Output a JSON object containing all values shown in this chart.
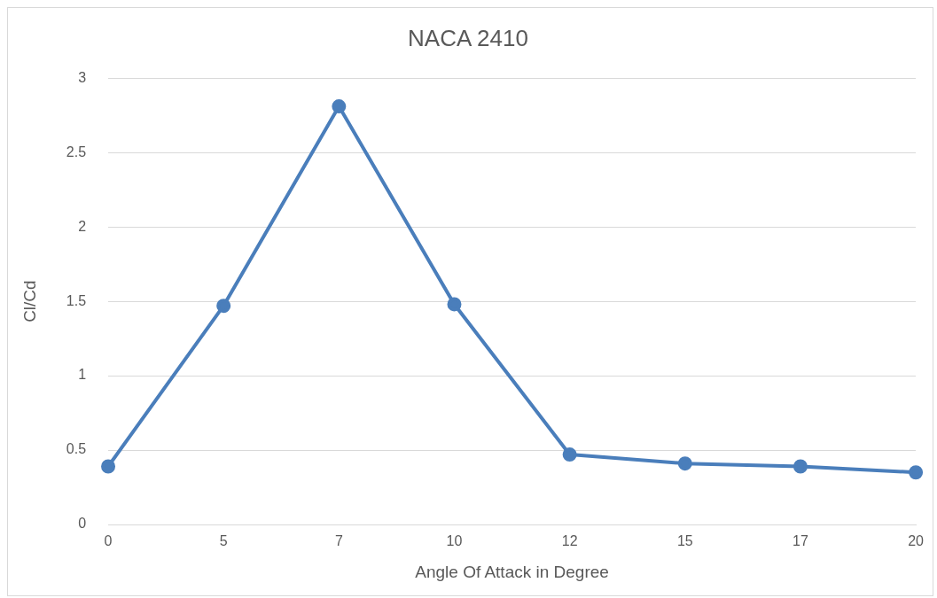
{
  "chart_data": {
    "type": "line",
    "title": "NACA 2410",
    "xlabel": "Angle Of Attack in Degree",
    "ylabel": "Cl/Cd",
    "categories": [
      "0",
      "5",
      "7",
      "10",
      "12",
      "15",
      "17",
      "20"
    ],
    "series": [
      {
        "color": "#4a7ebb",
        "values": [
          0.39,
          1.47,
          2.81,
          1.48,
          0.47,
          0.41,
          0.39,
          0.35
        ]
      }
    ],
    "ylim": [
      0,
      3
    ],
    "yticks": [
      0,
      0.5,
      1,
      1.5,
      2,
      2.5,
      3
    ],
    "grid": "y",
    "legend": false,
    "marker": "circle",
    "line_style": "solid"
  }
}
